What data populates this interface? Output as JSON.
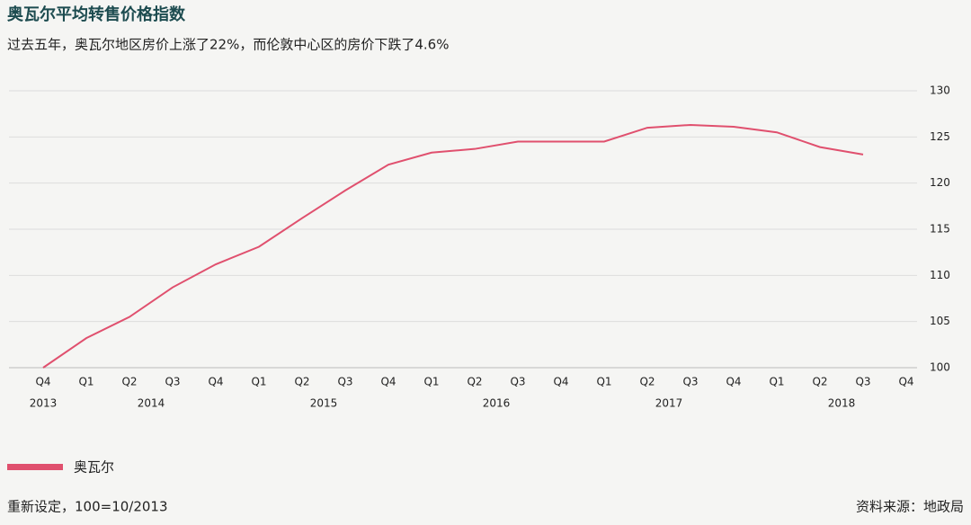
{
  "chart_data": {
    "type": "line",
    "title": "奥瓦尔平均转售价格指数",
    "subtitle": "过去五年，奥瓦尔地区房价上涨了22%，而伦敦中心区的房价下跌了4.6%",
    "categories": [
      "Q4",
      "Q1",
      "Q2",
      "Q3",
      "Q4",
      "Q1",
      "Q2",
      "Q3",
      "Q4",
      "Q1",
      "Q2",
      "Q3",
      "Q4",
      "Q1",
      "Q2",
      "Q3",
      "Q4",
      "Q1",
      "Q2",
      "Q3",
      "Q4"
    ],
    "years": [
      {
        "label": "2013",
        "quarters": 1
      },
      {
        "label": "2014",
        "quarters": 4
      },
      {
        "label": "2015",
        "quarters": 4
      },
      {
        "label": "2016",
        "quarters": 4
      },
      {
        "label": "2017",
        "quarters": 4
      },
      {
        "label": "2018",
        "quarters": 4
      }
    ],
    "series": [
      {
        "name": "奥瓦尔",
        "color": "#e0506e",
        "values": [
          100,
          103.2,
          105.5,
          108.7,
          111.2,
          113.1,
          116.2,
          119.2,
          122.0,
          123.3,
          123.7,
          124.5,
          124.5,
          124.5,
          126.0,
          126.3,
          126.1,
          125.5,
          123.9,
          123.1,
          null
        ]
      }
    ],
    "ylim": [
      100,
      130
    ],
    "yticks": [
      100,
      105,
      110,
      115,
      120,
      125,
      130
    ],
    "grid": true,
    "legend": "bottom-left",
    "note": "重新设定，100=10/2013",
    "source": "资料来源：地政局"
  }
}
